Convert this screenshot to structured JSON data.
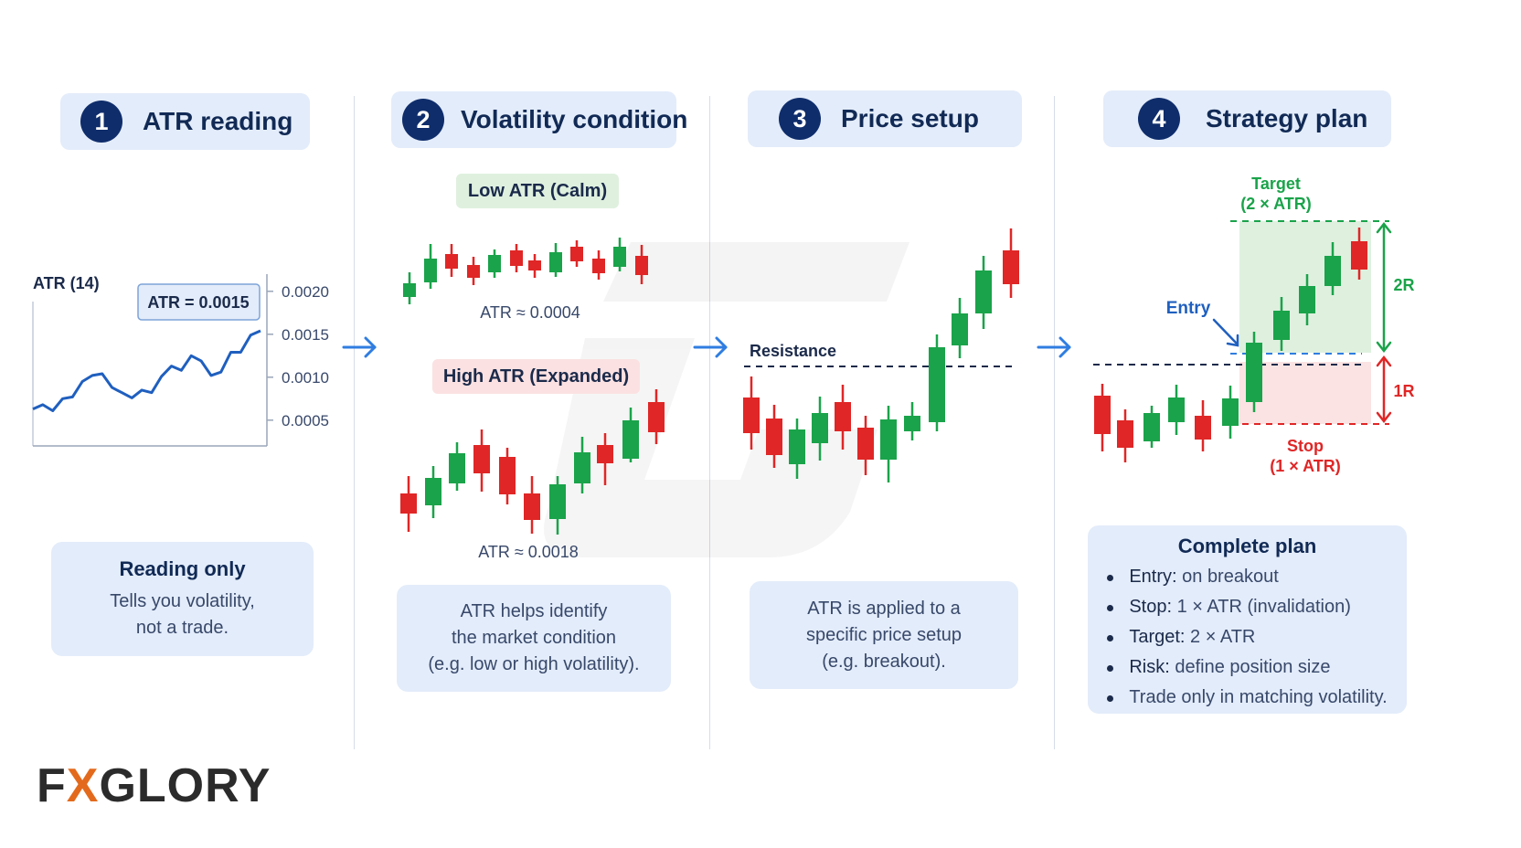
{
  "steps": [
    {
      "number": "1",
      "title": "ATR reading"
    },
    {
      "number": "2",
      "title": "Volatility condition"
    },
    {
      "number": "3",
      "title": "Price setup"
    },
    {
      "number": "4",
      "title": "Strategy plan"
    }
  ],
  "panel1": {
    "indicator_label": "ATR (14)",
    "value_box": "ATR = 0.0015",
    "card_title": "Reading only",
    "card_lines": [
      "Tells you volatility,",
      "not a trade."
    ]
  },
  "panel2": {
    "low_label": "Low ATR (Calm)",
    "low_value": "ATR ≈ 0.0004",
    "high_label": "High ATR (Expanded)",
    "high_value": "ATR ≈ 0.0018",
    "card_lines": [
      "ATR helps identify",
      "the market condition",
      "(e.g. low or high volatility)."
    ]
  },
  "panel3": {
    "resistance_label": "Resistance",
    "card_lines": [
      "ATR is applied to a",
      "specific price setup",
      "(e.g. breakout)."
    ]
  },
  "panel4": {
    "target_label": [
      "Target",
      "(2 × ATR)"
    ],
    "entry_label": "Entry",
    "stop_label": [
      "Stop",
      "(1 × ATR)"
    ],
    "reward_label": "2R",
    "risk_label": "1R",
    "plan_title": "Complete plan",
    "plan_items": [
      {
        "key": "Entry:",
        "text": " on breakout"
      },
      {
        "key": "Stop:",
        "text": " 1 × ATR (invalidation)"
      },
      {
        "key": "Target:",
        "text": " 2 × ATR"
      },
      {
        "key": "Risk:",
        "text": " define position size"
      },
      {
        "key": "",
        "text": "Trade only in matching volatility."
      }
    ]
  },
  "logo": {
    "prefix": "F",
    "mark": "X",
    "suffix": "GLORY"
  },
  "colors": {
    "bull": "#1aa34a",
    "bear": "#e02626",
    "navy": "#0f2d6b",
    "arrow": "#2f7de1",
    "panel": "#e3ecfa",
    "line": "#1f5fbf"
  },
  "chart_data": {
    "type": "line",
    "title": "ATR (14)",
    "y_ticks": [
      "0.0020",
      "0.0015",
      "0.0010",
      "0.0005"
    ],
    "ylim": [
      0.0002,
      0.0022
    ],
    "values": [
      0.00063,
      0.00068,
      0.00061,
      0.00075,
      0.00077,
      0.00095,
      0.00102,
      0.00104,
      0.00088,
      0.00082,
      0.00076,
      0.00085,
      0.00082,
      0.00101,
      0.00113,
      0.00108,
      0.00125,
      0.00119,
      0.00102,
      0.00106,
      0.00129,
      0.00129,
      0.00149,
      0.00154
    ]
  }
}
